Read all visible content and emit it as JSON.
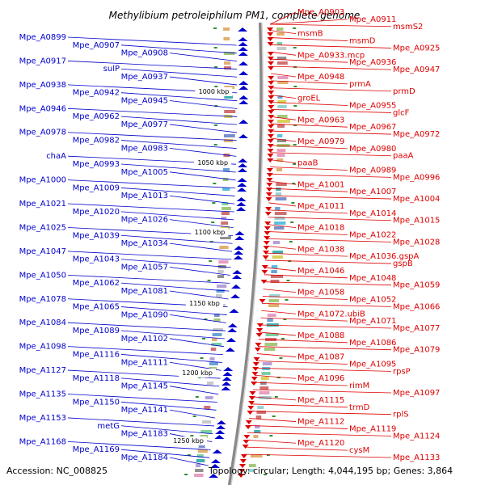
{
  "title": "Methylibium petroleiphilum PM1, complete genome",
  "footer": {
    "accession": "Accession: NC_008825",
    "topology": "Topology: circular; Length: 4,044,195 bp; Genes: 3,864"
  },
  "colors": {
    "left": "#0000cc",
    "right": "#dd0000",
    "backbone": "#888888",
    "tick": "#2f8f2f"
  },
  "kbp_labels": [
    "1000 kbp",
    "1050 kbp",
    "1100 kbp",
    "1150 kbp",
    "1200 kbp",
    "1250 kbp"
  ],
  "left_labels": [
    "Mpe_A0899",
    "Mpe_A0907",
    "Mpe_A0908",
    "Mpe_A0917",
    "sulP",
    "Mpe_A0937",
    "Mpe_A0938",
    "Mpe_A0942",
    "Mpe_A0945",
    "Mpe_A0946",
    "Mpe_A0962",
    "Mpe_A0977",
    "Mpe_A0978",
    "Mpe_A0982",
    "Mpe_A0983",
    "chaA",
    "Mpe_A0993",
    "Mpe_A1005",
    "Mpe_A1000",
    "Mpe_A1009",
    "Mpe_A1013",
    "Mpe_A1021",
    "Mpe_A1020",
    "Mpe_A1026",
    "Mpe_A1025",
    "Mpe_A1039",
    "Mpe_A1034",
    "Mpe_A1047",
    "Mpe_A1043",
    "Mpe_A1057",
    "Mpe_A1050",
    "Mpe_A1062",
    "Mpe_A1081",
    "Mpe_A1078",
    "Mpe_A1065",
    "Mpe_A1090",
    "Mpe_A1084",
    "Mpe_A1089",
    "Mpe_A1102",
    "Mpe_A1098",
    "Mpe_A1116",
    "Mpe_A1111",
    "Mpe_A1127",
    "Mpe_A1118",
    "Mpe_A1145",
    "Mpe_A1135",
    "Mpe_A1150",
    "Mpe_A1141",
    "Mpe_A1153",
    "metG",
    "Mpe_A1183",
    "Mpe_A1168",
    "Mpe_A1169",
    "Mpe_A1184"
  ],
  "right_labels": [
    "Mpe_A0903",
    "Mpe_A0911",
    "msmS2",
    "msmB",
    "msmD",
    "Mpe_A0925",
    "Mpe_A0933.mcp",
    "Mpe_A0936",
    "Mpe_A0947",
    "Mpe_A0948",
    "prmA",
    "prmD",
    "groEL",
    "Mpe_A0955",
    "glcF",
    "Mpe_A0963",
    "Mpe_A0967",
    "Mpe_A0972",
    "Mpe_A0979",
    "Mpe_A0980",
    "paaA",
    "paaB",
    "Mpe_A0989",
    "Mpe_A0996",
    "Mpe_A1001",
    "Mpe_A1007",
    "Mpe_A1004",
    "Mpe_A1011",
    "Mpe_A1014",
    "Mpe_A1015",
    "Mpe_A1018",
    "Mpe_A1022",
    "Mpe_A1028",
    "Mpe_A1038",
    "Mpe_A1036.gspA",
    "gspB",
    "Mpe_A1046",
    "Mpe_A1048",
    "Mpe_A1059",
    "Mpe_A1058",
    "Mpe_A1052",
    "Mpe_A1066",
    "Mpe_A1072.ubiB",
    "Mpe_A1071",
    "Mpe_A1077",
    "Mpe_A1088",
    "Mpe_A1086",
    "Mpe_A1079",
    "Mpe_A1087",
    "Mpe_A1095",
    "rpsP",
    "Mpe_A1096",
    "rimM",
    "Mpe_A1097",
    "Mpe_A1115",
    "trmD",
    "rplS",
    "Mpe_A1112",
    "Mpe_A1119",
    "Mpe_A1124",
    "Mpe_A1120",
    "cysM",
    "Mpe_A1133"
  ]
}
